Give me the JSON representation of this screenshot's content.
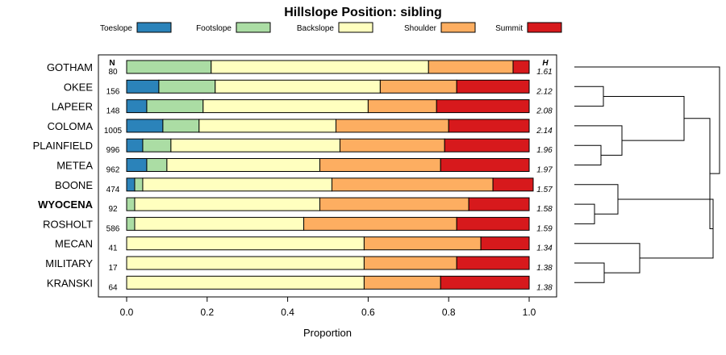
{
  "chart_data": {
    "type": "bar",
    "orientation": "horizontal",
    "stacked": true,
    "title": "Hillslope Position: sibling",
    "xlabel": "Proportion",
    "ylabel": "",
    "xlim": [
      0,
      1
    ],
    "x_ticks": [
      "0.0",
      "0.2",
      "0.4",
      "0.6",
      "0.8",
      "1.0"
    ],
    "n_header": "N",
    "h_header": "H",
    "legend_position": "top",
    "series": [
      {
        "name": "Toeslope",
        "color": "#2b83ba"
      },
      {
        "name": "Footslope",
        "color": "#abdda4"
      },
      {
        "name": "Backslope",
        "color": "#ffffbf"
      },
      {
        "name": "Shoulder",
        "color": "#fdae61"
      },
      {
        "name": "Summit",
        "color": "#d7191c"
      }
    ],
    "rows": [
      {
        "name": "GOTHAM",
        "n": "80",
        "h": "1.61",
        "bold": false,
        "values": [
          0.0,
          0.21,
          0.54,
          0.21,
          0.04
        ]
      },
      {
        "name": "OKEE",
        "n": "156",
        "h": "2.12",
        "bold": false,
        "values": [
          0.08,
          0.14,
          0.41,
          0.19,
          0.18
        ]
      },
      {
        "name": "LAPEER",
        "n": "148",
        "h": "2.08",
        "bold": false,
        "values": [
          0.05,
          0.14,
          0.41,
          0.17,
          0.23
        ]
      },
      {
        "name": "COLOMA",
        "n": "1005",
        "h": "2.14",
        "bold": false,
        "values": [
          0.09,
          0.09,
          0.34,
          0.28,
          0.2
        ]
      },
      {
        "name": "PLAINFIELD",
        "n": "996",
        "h": "1.96",
        "bold": false,
        "values": [
          0.04,
          0.07,
          0.42,
          0.26,
          0.21
        ]
      },
      {
        "name": "METEA",
        "n": "962",
        "h": "1.97",
        "bold": false,
        "values": [
          0.05,
          0.05,
          0.38,
          0.3,
          0.22
        ]
      },
      {
        "name": "BOONE",
        "n": "474",
        "h": "1.57",
        "bold": false,
        "values": [
          0.02,
          0.02,
          0.47,
          0.4,
          0.1
        ]
      },
      {
        "name": "WYOCENA",
        "n": "92",
        "h": "1.58",
        "bold": true,
        "values": [
          0.0,
          0.02,
          0.46,
          0.37,
          0.15
        ]
      },
      {
        "name": "ROSHOLT",
        "n": "586",
        "h": "1.59",
        "bold": false,
        "values": [
          0.0,
          0.02,
          0.42,
          0.38,
          0.18
        ]
      },
      {
        "name": "MECAN",
        "n": "41",
        "h": "1.34",
        "bold": false,
        "values": [
          0.0,
          0.0,
          0.59,
          0.29,
          0.12
        ]
      },
      {
        "name": "MILITARY",
        "n": "17",
        "h": "1.38",
        "bold": false,
        "values": [
          0.0,
          0.0,
          0.59,
          0.23,
          0.18
        ]
      },
      {
        "name": "KRANSKI",
        "n": "64",
        "h": "1.38",
        "bold": false,
        "values": [
          0.0,
          0.0,
          0.59,
          0.19,
          0.22
        ]
      }
    ]
  }
}
